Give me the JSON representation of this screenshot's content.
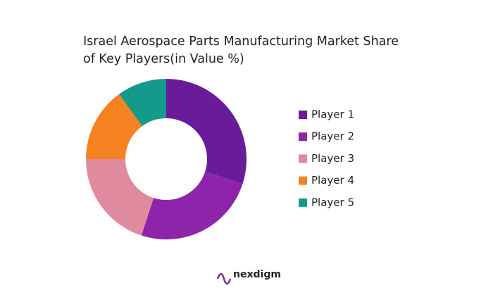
{
  "chart_data": {
    "type": "donut",
    "title": "Israel Aerospace Parts Manufacturing Market Share of Key Players(in Value %)",
    "categories": [
      "Player 1",
      "Player 2",
      "Player 3",
      "Player 4",
      "Player 5"
    ],
    "values": [
      30,
      25,
      20,
      15,
      10
    ],
    "colors": [
      "#6a1b9a",
      "#8e24aa",
      "#e08aa0",
      "#f58220",
      "#139a8a"
    ],
    "legend": "right"
  },
  "logo_text": "nexdigm"
}
